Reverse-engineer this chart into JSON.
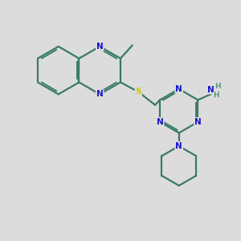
{
  "background_color": "#dcdcdc",
  "bond_color": "#3a7a6a",
  "N_color": "#1515cc",
  "S_color": "#cccc00",
  "H_color": "#5a9a7a",
  "lw": 1.6,
  "figsize": [
    3.0,
    3.0
  ],
  "dpi": 100,
  "xlim": [
    0,
    10
  ],
  "ylim": [
    0,
    10
  ]
}
